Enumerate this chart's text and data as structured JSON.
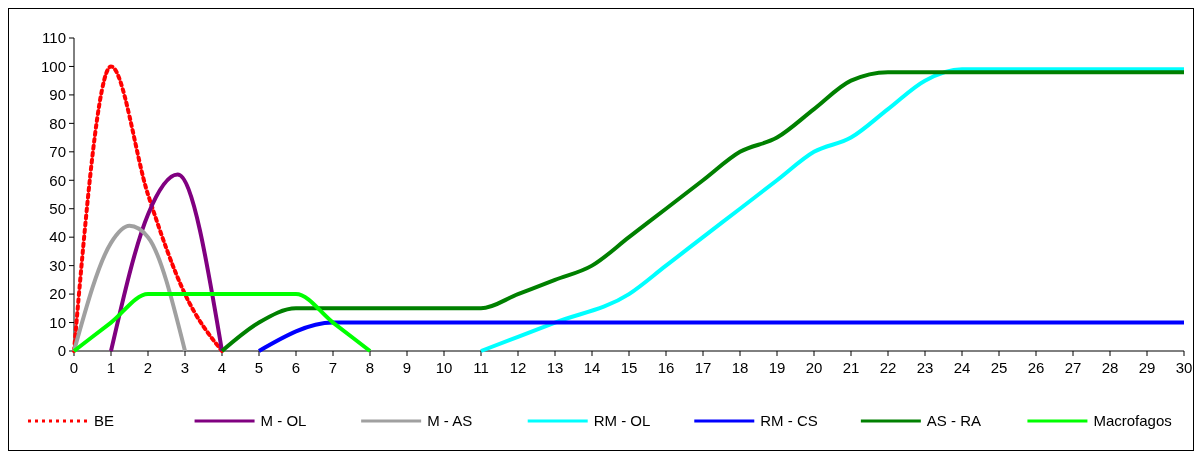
{
  "chart_data": {
    "type": "line",
    "xlim": [
      0,
      30
    ],
    "xticks": [
      0,
      1,
      2,
      3,
      4,
      5,
      6,
      7,
      8,
      9,
      10,
      11,
      12,
      13,
      14,
      15,
      16,
      17,
      18,
      19,
      20,
      21,
      22,
      23,
      24,
      25,
      26,
      27,
      28,
      29,
      30
    ],
    "ylim": [
      0,
      110
    ],
    "yticks": [
      0,
      10,
      20,
      30,
      40,
      50,
      60,
      70,
      80,
      90,
      100,
      110
    ],
    "legend": "bottom",
    "grid": false,
    "series": [
      {
        "name": "BE",
        "color": "#ff0000",
        "line_style": "dotted",
        "x": [
          0,
          1,
          2,
          3,
          4
        ],
        "values": [
          0,
          100,
          55,
          20,
          0
        ]
      },
      {
        "name": "M - OL",
        "color": "#800080",
        "line_style": "solid",
        "x": [
          1,
          2,
          2.8,
          4
        ],
        "values": [
          0,
          48,
          62,
          0
        ]
      },
      {
        "name": "M - AS",
        "color": "#a0a0a0",
        "line_style": "solid",
        "x": [
          0,
          1,
          1.5,
          2,
          3
        ],
        "values": [
          0,
          38,
          44,
          40,
          0
        ]
      },
      {
        "name": "RM - OL",
        "color": "#00ffff",
        "line_style": "solid",
        "x": [
          11,
          13,
          15,
          16,
          17,
          18,
          19,
          20,
          21,
          22,
          23,
          24,
          30
        ],
        "values": [
          0,
          10,
          20,
          30,
          40,
          50,
          60,
          70,
          75,
          85,
          95,
          99,
          99
        ]
      },
      {
        "name": "RM - CS",
        "color": "#0000ff",
        "line_style": "solid",
        "x": [
          5,
          7,
          8,
          30
        ],
        "values": [
          0,
          10,
          10,
          10
        ]
      },
      {
        "name": "AS - RA",
        "color": "#008000",
        "line_style": "solid",
        "x": [
          4,
          5,
          6,
          7,
          10,
          11,
          12,
          13,
          14,
          15,
          16,
          17,
          18,
          19,
          20,
          21,
          22,
          30
        ],
        "values": [
          0,
          10,
          15,
          15,
          15,
          15,
          20,
          25,
          30,
          40,
          50,
          60,
          70,
          75,
          85,
          95,
          98,
          98
        ]
      },
      {
        "name": "Macrofagos",
        "color": "#00ff00",
        "line_style": "solid",
        "x": [
          0,
          1,
          2,
          3,
          4,
          5,
          6,
          7,
          8
        ],
        "values": [
          0,
          10,
          20,
          20,
          20,
          20,
          20,
          10,
          0
        ]
      }
    ]
  }
}
